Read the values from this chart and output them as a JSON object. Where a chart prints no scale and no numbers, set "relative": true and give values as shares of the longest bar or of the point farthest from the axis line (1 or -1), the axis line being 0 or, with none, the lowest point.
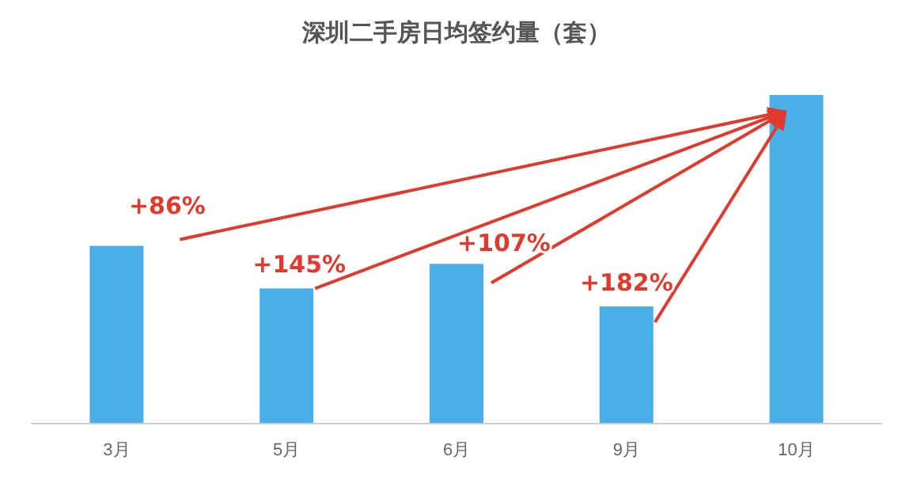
{
  "chart_data": {
    "type": "bar",
    "title": "深圳二手房日均签约量（套）",
    "categories": [
      "3月",
      "5月",
      "6月",
      "9月",
      "10月"
    ],
    "values": [
      0.54,
      0.41,
      0.485,
      0.355,
      1
    ],
    "color": "#4aaee8",
    "relative": true,
    "annotations": [
      "+86%",
      "+145%",
      "+107%",
      "+182%"
    ]
  }
}
